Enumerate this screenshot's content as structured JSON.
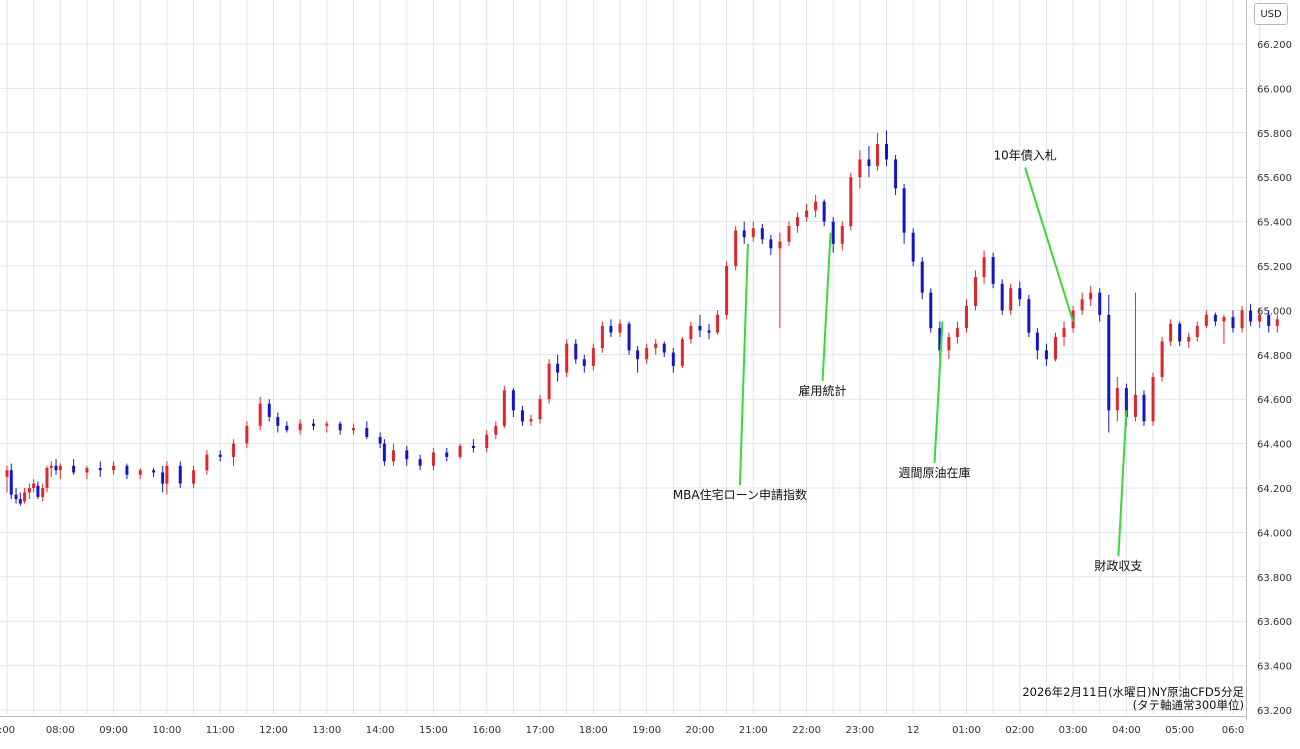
{
  "unit": "USD",
  "footnote": {
    "line1": "2026年2月11日(水曜日)NY原油CFD5分足",
    "line2": "(タテ軸通常300単位)"
  },
  "colors": {
    "up": "#e0262b",
    "down": "#1515c8",
    "grid": "#dce6ee",
    "annotation_line": "#33dd33"
  },
  "chart_data": {
    "type": "candlestick",
    "title": "",
    "ylim": [
      63.2,
      66.3
    ],
    "y_ticks": [
      "63.200",
      "63.400",
      "63.600",
      "63.800",
      "64.000",
      "64.200",
      "64.400",
      "64.600",
      "64.800",
      "65.000",
      "65.200",
      "65.400",
      "65.600",
      "65.800",
      "66.000",
      "66.200"
    ],
    "x_ticks": [
      ":00",
      "08:00",
      "09:00",
      "10:00",
      "11:00",
      "12:00",
      "13:00",
      "14:00",
      "15:00",
      "16:00",
      "17:00",
      "18:00",
      "19:00",
      "20:00",
      "21:00",
      "22:00",
      "23:00",
      "12",
      "01:00",
      "02:00",
      "03:00",
      "04:00",
      "05:00",
      "06:0"
    ],
    "x_range_hours": [
      6.95,
      30.9
    ],
    "annotations": [
      {
        "text": "MBA住宅ローン申請指数",
        "time_h": 20.9,
        "price": 65.3,
        "label_price": 64.15
      },
      {
        "text": "雇用統計",
        "time_h": 22.45,
        "price": 65.35,
        "label_price": 64.62
      },
      {
        "text": "週間原油在庫",
        "time_h": 24.55,
        "price": 64.95,
        "label_price": 64.25
      },
      {
        "text": "10年債入札",
        "time_h": 27.0,
        "price": 64.95,
        "label_price": 65.68
      },
      {
        "text": "財政収支",
        "time_h": 28.0,
        "price": 64.55,
        "label_price": 63.83
      }
    ],
    "candles": [
      {
        "t": 7.0,
        "o": 64.25,
        "h": 64.3,
        "l": 64.18,
        "c": 64.28
      },
      {
        "t": 7.08,
        "o": 64.28,
        "h": 64.31,
        "l": 64.15,
        "c": 64.17
      },
      {
        "t": 7.17,
        "o": 64.17,
        "h": 64.2,
        "l": 64.13,
        "c": 64.15
      },
      {
        "t": 7.25,
        "o": 64.15,
        "h": 64.18,
        "l": 64.12,
        "c": 64.13
      },
      {
        "t": 7.33,
        "o": 64.14,
        "h": 64.2,
        "l": 64.13,
        "c": 64.18
      },
      {
        "t": 7.42,
        "o": 64.18,
        "h": 64.22,
        "l": 64.15,
        "c": 64.2
      },
      {
        "t": 7.5,
        "o": 64.2,
        "h": 64.24,
        "l": 64.18,
        "c": 64.22
      },
      {
        "t": 7.58,
        "o": 64.21,
        "h": 64.23,
        "l": 64.15,
        "c": 64.16
      },
      {
        "t": 7.67,
        "o": 64.16,
        "h": 64.22,
        "l": 64.14,
        "c": 64.2
      },
      {
        "t": 7.75,
        "o": 64.2,
        "h": 64.3,
        "l": 64.18,
        "c": 64.29
      },
      {
        "t": 7.83,
        "o": 64.29,
        "h": 64.32,
        "l": 64.25,
        "c": 64.3
      },
      {
        "t": 7.92,
        "o": 64.3,
        "h": 64.33,
        "l": 64.26,
        "c": 64.28
      },
      {
        "t": 8.0,
        "o": 64.28,
        "h": 64.31,
        "l": 64.24,
        "c": 64.3
      },
      {
        "t": 8.25,
        "o": 64.3,
        "h": 64.33,
        "l": 64.26,
        "c": 64.27
      },
      {
        "t": 8.5,
        "o": 64.27,
        "h": 64.3,
        "l": 64.24,
        "c": 64.29
      },
      {
        "t": 8.75,
        "o": 64.29,
        "h": 64.32,
        "l": 64.25,
        "c": 64.28
      },
      {
        "t": 9.0,
        "o": 64.28,
        "h": 64.32,
        "l": 64.26,
        "c": 64.3
      },
      {
        "t": 9.25,
        "o": 64.3,
        "h": 64.31,
        "l": 64.24,
        "c": 64.26
      },
      {
        "t": 9.5,
        "o": 64.26,
        "h": 64.29,
        "l": 64.24,
        "c": 64.28
      },
      {
        "t": 9.75,
        "o": 64.28,
        "h": 64.29,
        "l": 64.25,
        "c": 64.27
      },
      {
        "t": 9.92,
        "o": 64.27,
        "h": 64.3,
        "l": 64.18,
        "c": 64.22
      },
      {
        "t": 10.0,
        "o": 64.22,
        "h": 64.32,
        "l": 64.17,
        "c": 64.3
      },
      {
        "t": 10.25,
        "o": 64.3,
        "h": 64.32,
        "l": 64.2,
        "c": 64.22
      },
      {
        "t": 10.5,
        "o": 64.22,
        "h": 64.3,
        "l": 64.2,
        "c": 64.28
      },
      {
        "t": 10.75,
        "o": 64.28,
        "h": 64.37,
        "l": 64.26,
        "c": 64.35
      },
      {
        "t": 11.0,
        "o": 64.35,
        "h": 64.37,
        "l": 64.32,
        "c": 64.34
      },
      {
        "t": 11.25,
        "o": 64.34,
        "h": 64.42,
        "l": 64.3,
        "c": 64.4
      },
      {
        "t": 11.5,
        "o": 64.4,
        "h": 64.5,
        "l": 64.38,
        "c": 64.48
      },
      {
        "t": 11.75,
        "o": 64.48,
        "h": 64.61,
        "l": 64.46,
        "c": 64.58
      },
      {
        "t": 11.92,
        "o": 64.58,
        "h": 64.6,
        "l": 64.5,
        "c": 64.52
      },
      {
        "t": 12.08,
        "o": 64.52,
        "h": 64.54,
        "l": 64.45,
        "c": 64.48
      },
      {
        "t": 12.25,
        "o": 64.48,
        "h": 64.5,
        "l": 64.45,
        "c": 64.46
      },
      {
        "t": 12.5,
        "o": 64.46,
        "h": 64.51,
        "l": 64.44,
        "c": 64.49
      },
      {
        "t": 12.75,
        "o": 64.49,
        "h": 64.51,
        "l": 64.46,
        "c": 64.48
      },
      {
        "t": 13.0,
        "o": 64.48,
        "h": 64.5,
        "l": 64.45,
        "c": 64.49
      },
      {
        "t": 13.25,
        "o": 64.49,
        "h": 64.5,
        "l": 64.44,
        "c": 64.46
      },
      {
        "t": 13.5,
        "o": 64.46,
        "h": 64.49,
        "l": 64.44,
        "c": 64.47
      },
      {
        "t": 13.75,
        "o": 64.47,
        "h": 64.5,
        "l": 64.42,
        "c": 64.43
      },
      {
        "t": 14.0,
        "o": 64.43,
        "h": 64.45,
        "l": 64.38,
        "c": 64.4
      },
      {
        "t": 14.08,
        "o": 64.4,
        "h": 64.42,
        "l": 64.3,
        "c": 64.32
      },
      {
        "t": 14.25,
        "o": 64.32,
        "h": 64.4,
        "l": 64.3,
        "c": 64.37
      },
      {
        "t": 14.5,
        "o": 64.37,
        "h": 64.39,
        "l": 64.3,
        "c": 64.33
      },
      {
        "t": 14.75,
        "o": 64.33,
        "h": 64.35,
        "l": 64.28,
        "c": 64.3
      },
      {
        "t": 15.0,
        "o": 64.3,
        "h": 64.38,
        "l": 64.28,
        "c": 64.36
      },
      {
        "t": 15.25,
        "o": 64.36,
        "h": 64.38,
        "l": 64.32,
        "c": 64.34
      },
      {
        "t": 15.5,
        "o": 64.34,
        "h": 64.4,
        "l": 64.33,
        "c": 64.39
      },
      {
        "t": 15.75,
        "o": 64.39,
        "h": 64.42,
        "l": 64.36,
        "c": 64.38
      },
      {
        "t": 16.0,
        "o": 64.38,
        "h": 64.46,
        "l": 64.36,
        "c": 64.44
      },
      {
        "t": 16.17,
        "o": 64.44,
        "h": 64.5,
        "l": 64.42,
        "c": 64.48
      },
      {
        "t": 16.33,
        "o": 64.48,
        "h": 64.66,
        "l": 64.47,
        "c": 64.64
      },
      {
        "t": 16.5,
        "o": 64.64,
        "h": 64.65,
        "l": 64.52,
        "c": 64.55
      },
      {
        "t": 16.67,
        "o": 64.55,
        "h": 64.57,
        "l": 64.48,
        "c": 64.5
      },
      {
        "t": 16.83,
        "o": 64.5,
        "h": 64.53,
        "l": 64.48,
        "c": 64.51
      },
      {
        "t": 17.0,
        "o": 64.51,
        "h": 64.62,
        "l": 64.49,
        "c": 64.6
      },
      {
        "t": 17.17,
        "o": 64.6,
        "h": 64.78,
        "l": 64.58,
        "c": 64.76
      },
      {
        "t": 17.33,
        "o": 64.76,
        "h": 64.8,
        "l": 64.68,
        "c": 64.72
      },
      {
        "t": 17.5,
        "o": 64.72,
        "h": 64.87,
        "l": 64.7,
        "c": 64.85
      },
      {
        "t": 17.67,
        "o": 64.85,
        "h": 64.87,
        "l": 64.76,
        "c": 64.78
      },
      {
        "t": 17.83,
        "o": 64.78,
        "h": 64.8,
        "l": 64.72,
        "c": 64.75
      },
      {
        "t": 18.0,
        "o": 64.75,
        "h": 64.85,
        "l": 64.73,
        "c": 64.83
      },
      {
        "t": 18.17,
        "o": 64.83,
        "h": 64.95,
        "l": 64.81,
        "c": 64.93
      },
      {
        "t": 18.33,
        "o": 64.93,
        "h": 64.96,
        "l": 64.88,
        "c": 64.9
      },
      {
        "t": 18.5,
        "o": 64.9,
        "h": 64.96,
        "l": 64.88,
        "c": 64.94
      },
      {
        "t": 18.67,
        "o": 64.94,
        "h": 64.95,
        "l": 64.8,
        "c": 64.82
      },
      {
        "t": 18.83,
        "o": 64.82,
        "h": 64.84,
        "l": 64.72,
        "c": 64.78
      },
      {
        "t": 19.0,
        "o": 64.78,
        "h": 64.85,
        "l": 64.76,
        "c": 64.83
      },
      {
        "t": 19.17,
        "o": 64.83,
        "h": 64.87,
        "l": 64.8,
        "c": 64.85
      },
      {
        "t": 19.33,
        "o": 64.85,
        "h": 64.86,
        "l": 64.79,
        "c": 64.81
      },
      {
        "t": 19.5,
        "o": 64.81,
        "h": 64.83,
        "l": 64.72,
        "c": 64.75
      },
      {
        "t": 19.67,
        "o": 64.75,
        "h": 64.88,
        "l": 64.74,
        "c": 64.87
      },
      {
        "t": 19.83,
        "o": 64.87,
        "h": 64.95,
        "l": 64.85,
        "c": 64.93
      },
      {
        "t": 20.0,
        "o": 64.93,
        "h": 64.98,
        "l": 64.88,
        "c": 64.91
      },
      {
        "t": 20.17,
        "o": 64.91,
        "h": 64.94,
        "l": 64.87,
        "c": 64.9
      },
      {
        "t": 20.33,
        "o": 64.9,
        "h": 65.0,
        "l": 64.89,
        "c": 64.98
      },
      {
        "t": 20.5,
        "o": 64.98,
        "h": 65.22,
        "l": 64.96,
        "c": 65.2
      },
      {
        "t": 20.67,
        "o": 65.2,
        "h": 65.38,
        "l": 65.18,
        "c": 65.36
      },
      {
        "t": 20.83,
        "o": 65.36,
        "h": 65.4,
        "l": 65.3,
        "c": 65.33
      },
      {
        "t": 21.0,
        "o": 65.33,
        "h": 65.4,
        "l": 65.31,
        "c": 65.37
      },
      {
        "t": 21.17,
        "o": 65.37,
        "h": 65.39,
        "l": 65.3,
        "c": 65.32
      },
      {
        "t": 21.33,
        "o": 65.32,
        "h": 65.34,
        "l": 65.25,
        "c": 65.28
      },
      {
        "t": 21.5,
        "o": 65.28,
        "h": 65.35,
        "l": 64.92,
        "c": 65.31
      },
      {
        "t": 21.67,
        "o": 65.31,
        "h": 65.4,
        "l": 65.29,
        "c": 65.38
      },
      {
        "t": 21.83,
        "o": 65.38,
        "h": 65.44,
        "l": 65.35,
        "c": 65.42
      },
      {
        "t": 22.0,
        "o": 65.42,
        "h": 65.48,
        "l": 65.4,
        "c": 65.45
      },
      {
        "t": 22.17,
        "o": 65.45,
        "h": 65.52,
        "l": 65.42,
        "c": 65.49
      },
      {
        "t": 22.33,
        "o": 65.49,
        "h": 65.5,
        "l": 65.38,
        "c": 65.4
      },
      {
        "t": 22.5,
        "o": 65.4,
        "h": 65.42,
        "l": 65.26,
        "c": 65.3
      },
      {
        "t": 22.67,
        "o": 65.3,
        "h": 65.4,
        "l": 65.27,
        "c": 65.38
      },
      {
        "t": 22.83,
        "o": 65.38,
        "h": 65.62,
        "l": 65.36,
        "c": 65.6
      },
      {
        "t": 23.0,
        "o": 65.6,
        "h": 65.72,
        "l": 65.55,
        "c": 65.68
      },
      {
        "t": 23.17,
        "o": 65.68,
        "h": 65.74,
        "l": 65.6,
        "c": 65.65
      },
      {
        "t": 23.33,
        "o": 65.65,
        "h": 65.8,
        "l": 65.63,
        "c": 65.75
      },
      {
        "t": 23.5,
        "o": 65.75,
        "h": 65.81,
        "l": 65.65,
        "c": 65.68
      },
      {
        "t": 23.67,
        "o": 65.68,
        "h": 65.7,
        "l": 65.52,
        "c": 65.55
      },
      {
        "t": 23.83,
        "o": 65.55,
        "h": 65.57,
        "l": 65.3,
        "c": 65.35
      },
      {
        "t": 24.0,
        "o": 65.35,
        "h": 65.37,
        "l": 65.2,
        "c": 65.22
      },
      {
        "t": 24.17,
        "o": 65.22,
        "h": 65.24,
        "l": 65.05,
        "c": 65.08
      },
      {
        "t": 24.33,
        "o": 65.08,
        "h": 65.1,
        "l": 64.9,
        "c": 64.92
      },
      {
        "t": 24.5,
        "o": 64.92,
        "h": 64.95,
        "l": 64.78,
        "c": 64.82
      },
      {
        "t": 24.67,
        "o": 64.82,
        "h": 64.9,
        "l": 64.78,
        "c": 64.88
      },
      {
        "t": 24.83,
        "o": 64.88,
        "h": 64.95,
        "l": 64.85,
        "c": 64.92
      },
      {
        "t": 25.0,
        "o": 64.92,
        "h": 65.05,
        "l": 64.9,
        "c": 65.02
      },
      {
        "t": 25.17,
        "o": 65.02,
        "h": 65.18,
        "l": 65.0,
        "c": 65.15
      },
      {
        "t": 25.33,
        "o": 65.15,
        "h": 65.27,
        "l": 65.12,
        "c": 65.24
      },
      {
        "t": 25.5,
        "o": 65.24,
        "h": 65.26,
        "l": 65.1,
        "c": 65.12
      },
      {
        "t": 25.67,
        "o": 65.12,
        "h": 65.14,
        "l": 64.98,
        "c": 65.0
      },
      {
        "t": 25.83,
        "o": 65.0,
        "h": 65.12,
        "l": 64.98,
        "c": 65.1
      },
      {
        "t": 26.0,
        "o": 65.1,
        "h": 65.13,
        "l": 65.02,
        "c": 65.05
      },
      {
        "t": 26.17,
        "o": 65.05,
        "h": 65.07,
        "l": 64.88,
        "c": 64.9
      },
      {
        "t": 26.33,
        "o": 64.9,
        "h": 64.92,
        "l": 64.78,
        "c": 64.82
      },
      {
        "t": 26.5,
        "o": 64.82,
        "h": 64.85,
        "l": 64.75,
        "c": 64.78
      },
      {
        "t": 26.67,
        "o": 64.78,
        "h": 64.9,
        "l": 64.77,
        "c": 64.88
      },
      {
        "t": 26.83,
        "o": 64.88,
        "h": 64.95,
        "l": 64.84,
        "c": 64.92
      },
      {
        "t": 27.0,
        "o": 64.92,
        "h": 65.02,
        "l": 64.9,
        "c": 65.0
      },
      {
        "t": 27.17,
        "o": 65.0,
        "h": 65.08,
        "l": 64.98,
        "c": 65.05
      },
      {
        "t": 27.33,
        "o": 65.05,
        "h": 65.11,
        "l": 65.02,
        "c": 65.08
      },
      {
        "t": 27.5,
        "o": 65.08,
        "h": 65.1,
        "l": 64.95,
        "c": 64.98
      },
      {
        "t": 27.67,
        "o": 64.98,
        "h": 65.07,
        "l": 64.45,
        "c": 64.55
      },
      {
        "t": 27.83,
        "o": 64.55,
        "h": 64.7,
        "l": 64.5,
        "c": 64.65
      },
      {
        "t": 28.0,
        "o": 64.65,
        "h": 64.67,
        "l": 64.48,
        "c": 64.52
      },
      {
        "t": 28.17,
        "o": 64.52,
        "h": 65.08,
        "l": 64.5,
        "c": 64.62
      },
      {
        "t": 28.33,
        "o": 64.62,
        "h": 64.64,
        "l": 64.48,
        "c": 64.5
      },
      {
        "t": 28.5,
        "o": 64.5,
        "h": 64.72,
        "l": 64.48,
        "c": 64.7
      },
      {
        "t": 28.67,
        "o": 64.7,
        "h": 64.88,
        "l": 64.68,
        "c": 64.86
      },
      {
        "t": 28.83,
        "o": 64.86,
        "h": 64.96,
        "l": 64.84,
        "c": 64.94
      },
      {
        "t": 29.0,
        "o": 64.94,
        "h": 64.95,
        "l": 64.84,
        "c": 64.86
      },
      {
        "t": 29.17,
        "o": 64.86,
        "h": 64.9,
        "l": 64.83,
        "c": 64.88
      },
      {
        "t": 29.33,
        "o": 64.88,
        "h": 64.95,
        "l": 64.86,
        "c": 64.93
      },
      {
        "t": 29.5,
        "o": 64.93,
        "h": 65.0,
        "l": 64.92,
        "c": 64.98
      },
      {
        "t": 29.67,
        "o": 64.98,
        "h": 64.99,
        "l": 64.93,
        "c": 64.95
      },
      {
        "t": 29.83,
        "o": 64.95,
        "h": 64.98,
        "l": 64.85,
        "c": 64.97
      },
      {
        "t": 30.0,
        "o": 64.97,
        "h": 65.0,
        "l": 64.9,
        "c": 64.92
      },
      {
        "t": 30.17,
        "o": 64.92,
        "h": 65.02,
        "l": 64.9,
        "c": 65.0
      },
      {
        "t": 30.33,
        "o": 65.0,
        "h": 65.03,
        "l": 64.93,
        "c": 64.95
      },
      {
        "t": 30.5,
        "o": 64.95,
        "h": 65.01,
        "l": 64.92,
        "c": 64.98
      },
      {
        "t": 30.67,
        "o": 64.98,
        "h": 65.0,
        "l": 64.9,
        "c": 64.93
      },
      {
        "t": 30.83,
        "o": 64.93,
        "h": 64.98,
        "l": 64.9,
        "c": 64.96
      }
    ]
  }
}
